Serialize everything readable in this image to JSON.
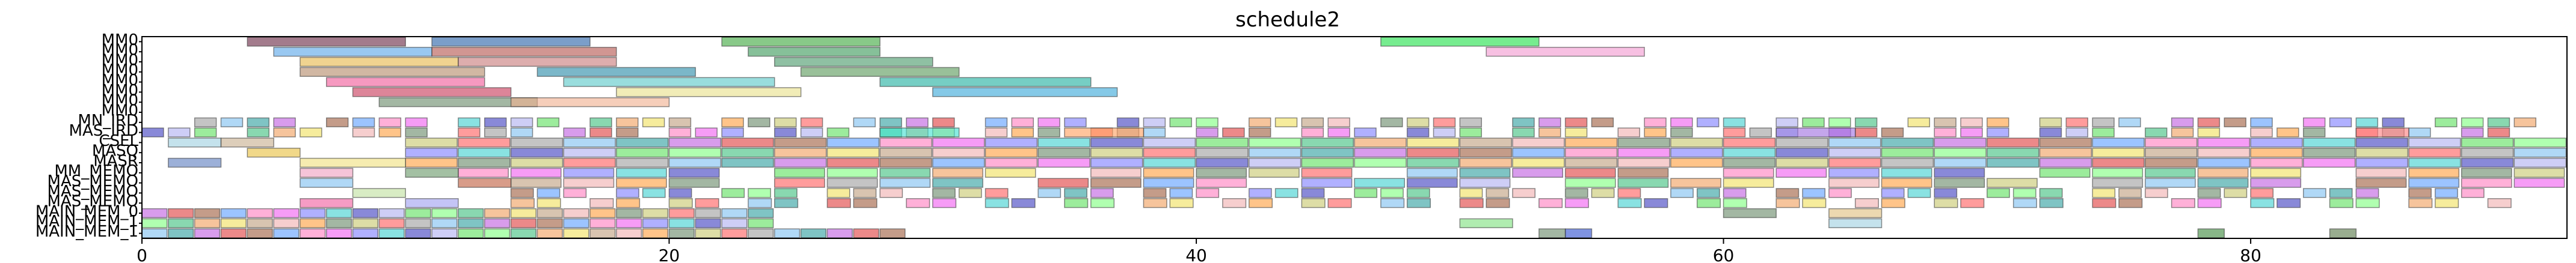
{
  "chart_data": {
    "type": "gantt",
    "title": "schedule2",
    "xlabel": "",
    "ylabel": "",
    "xlim": [
      0,
      92
    ],
    "xticks": [
      0,
      20,
      40,
      60,
      80
    ],
    "grid": false,
    "rows": [
      "MM0",
      "MM0",
      "MM0",
      "MM0",
      "MM0",
      "MM0",
      "MM0",
      "MM0",
      "MN_IRD",
      "MAS_IRD",
      "CSEL",
      "MASQ",
      "MASR",
      "MM_MEMO",
      "MAS_MEMO",
      "MAS_MEMO",
      "MAS_MEMO",
      "MAIN_MEM_0",
      "MAIN_MEM_1",
      "MAIN_MEM_1"
    ],
    "tasks": [
      {
        "row": 0,
        "start": 4,
        "end": 10,
        "color": "#6b2a45"
      },
      {
        "row": 0,
        "start": 11,
        "end": 17,
        "color": "#2a62a8"
      },
      {
        "row": 0,
        "start": 22,
        "end": 28,
        "color": "#3fa83f"
      },
      {
        "row": 0,
        "start": 47,
        "end": 53,
        "color": "#22e04a"
      },
      {
        "row": 1,
        "start": 5,
        "end": 11,
        "color": "#5aa6e8"
      },
      {
        "row": 1,
        "start": 11,
        "end": 18,
        "color": "#b5554f"
      },
      {
        "row": 1,
        "start": 23,
        "end": 28,
        "color": "#3c9a5a"
      },
      {
        "row": 1,
        "start": 51,
        "end": 57,
        "color": "#f29ad0"
      },
      {
        "row": 2,
        "start": 6,
        "end": 12,
        "color": "#e6b84c"
      },
      {
        "row": 2,
        "start": 12,
        "end": 18,
        "color": "#c87a7a"
      },
      {
        "row": 2,
        "start": 24,
        "end": 30,
        "color": "#4a9a6a"
      },
      {
        "row": 3,
        "start": 6,
        "end": 13,
        "color": "#b58a6a"
      },
      {
        "row": 3,
        "start": 15,
        "end": 21,
        "color": "#2a8aa8"
      },
      {
        "row": 3,
        "start": 25,
        "end": 31,
        "color": "#5a9a5a"
      },
      {
        "row": 4,
        "start": 7,
        "end": 13,
        "color": "#f05a9a"
      },
      {
        "row": 4,
        "start": 16,
        "end": 24,
        "color": "#5ac8c8"
      },
      {
        "row": 4,
        "start": 28,
        "end": 36,
        "color": "#22b0a0"
      },
      {
        "row": 5,
        "start": 8,
        "end": 14,
        "color": "#c83a5a"
      },
      {
        "row": 5,
        "start": 18,
        "end": 25,
        "color": "#e8e08a"
      },
      {
        "row": 5,
        "start": 30,
        "end": 37,
        "color": "#3aa8d8"
      },
      {
        "row": 6,
        "start": 9,
        "end": 15,
        "color": "#6a8a6a"
      },
      {
        "row": 6,
        "start": 14,
        "end": 20,
        "color": "#f0b090"
      },
      {
        "row": 9,
        "start": 28,
        "end": 31,
        "color": "#40e0d0"
      },
      {
        "row": 9,
        "start": 35,
        "end": 38,
        "color": "#ffa060"
      },
      {
        "row": 9,
        "start": 62,
        "end": 65,
        "color": "#a070e0"
      },
      {
        "row": 9,
        "start": 84,
        "end": 86,
        "color": "#ff8080"
      },
      {
        "row": 10,
        "start": 1,
        "end": 3,
        "color": "#a0d0e0"
      },
      {
        "row": 10,
        "start": 3,
        "end": 5,
        "color": "#c8b090"
      },
      {
        "row": 11,
        "start": 4,
        "end": 6,
        "color": "#e8c040"
      },
      {
        "row": 12,
        "start": 1,
        "end": 3,
        "color": "#6080c0"
      },
      {
        "row": 12,
        "start": 6,
        "end": 10,
        "color": "#f0e080"
      },
      {
        "row": 13,
        "start": 6,
        "end": 8,
        "color": "#f0a0c0"
      },
      {
        "row": 13,
        "start": 10,
        "end": 12,
        "color": "#6a9a6a"
      },
      {
        "row": 14,
        "start": 6,
        "end": 8,
        "color": "#80c0f0"
      },
      {
        "row": 14,
        "start": 12,
        "end": 14,
        "color": "#c06040"
      },
      {
        "row": 15,
        "start": 8,
        "end": 10,
        "color": "#c0e0a0"
      },
      {
        "row": 16,
        "start": 6,
        "end": 8,
        "color": "#f060a0"
      },
      {
        "row": 16,
        "start": 10,
        "end": 12,
        "color": "#a0a0f0"
      },
      {
        "row": 17,
        "start": 60,
        "end": 62,
        "color": "#6a8a6a"
      },
      {
        "row": 17,
        "start": 64,
        "end": 66,
        "color": "#e0c080"
      },
      {
        "row": 18,
        "start": 50,
        "end": 52,
        "color": "#80e080"
      },
      {
        "row": 18,
        "start": 64,
        "end": 66,
        "color": "#a0d0e0"
      },
      {
        "row": 19,
        "start": 53,
        "end": 54,
        "color": "#6a8a6a"
      },
      {
        "row": 19,
        "start": 54,
        "end": 55,
        "color": "#3050d0"
      },
      {
        "row": 19,
        "start": 78,
        "end": 79,
        "color": "#3f8a3f"
      },
      {
        "row": 19,
        "start": 83,
        "end": 84,
        "color": "#5a7a4a"
      }
    ],
    "sequences": [
      {
        "row": 8,
        "start": 2,
        "end": 91,
        "step": 1,
        "fill": 0.82,
        "gap": 1,
        "gap_every": 5
      },
      {
        "row": 9,
        "start": 0,
        "end": 90,
        "step": 1,
        "fill": 0.82,
        "gap": 1,
        "gap_every": 4
      },
      {
        "row": 10,
        "start": 10,
        "end": 92,
        "step": 2,
        "fill": 0.98,
        "gap": 0,
        "gap_every": 0
      },
      {
        "row": 11,
        "start": 10,
        "end": 92,
        "step": 2,
        "fill": 0.98,
        "gap": 0,
        "gap_every": 0
      },
      {
        "row": 12,
        "start": 10,
        "end": 91,
        "step": 2,
        "fill": 0.98,
        "gap": 0,
        "gap_every": 0
      },
      {
        "row": 13,
        "start": 12,
        "end": 91,
        "step": 2,
        "fill": 0.95,
        "gap": 1,
        "gap_every": 6
      },
      {
        "row": 14,
        "start": 14,
        "end": 91,
        "step": 2,
        "fill": 0.95,
        "gap": 1,
        "gap_every": 5
      },
      {
        "row": 15,
        "start": 14,
        "end": 90,
        "step": 1,
        "fill": 0.85,
        "gap": 1,
        "gap_every": 4
      },
      {
        "row": 16,
        "start": 14,
        "end": 90,
        "step": 1,
        "fill": 0.88,
        "gap": 1,
        "gap_every": 3
      },
      {
        "row": 17,
        "start": 0,
        "end": 24,
        "step": 1,
        "fill": 0.95,
        "gap": 0,
        "gap_every": 0
      },
      {
        "row": 18,
        "start": 0,
        "end": 24,
        "step": 1,
        "fill": 0.95,
        "gap": 0,
        "gap_every": 0
      },
      {
        "row": 19,
        "start": 0,
        "end": 29,
        "step": 1,
        "fill": 0.95,
        "gap": 0,
        "gap_every": 0
      }
    ],
    "palette": [
      "#ff6060",
      "#60a0ff",
      "#60e060",
      "#ffa040",
      "#c060e0",
      "#40d0d0",
      "#f0e060",
      "#a0a0a0",
      "#ff80c0",
      "#80ff80",
      "#6a8a6a",
      "#e04040",
      "#4040c0",
      "#c0a080",
      "#80c0f0",
      "#f060f0",
      "#40c080",
      "#c8c870",
      "#a06040",
      "#b0b0f0",
      "#f0b0b0",
      "#30a0a0",
      "#8080ff",
      "#f0a060"
    ]
  }
}
